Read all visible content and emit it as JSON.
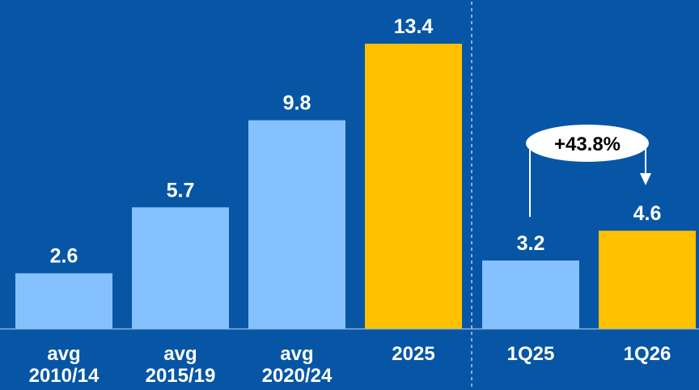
{
  "colors": {
    "background": "#0656A5",
    "bar_primary": "#FFC000",
    "bar_secondary": "#85C1FF",
    "text": "#FFFFFF",
    "annotation_fill": "#FFFFFF",
    "annotation_text": "#000000"
  },
  "chart_data": {
    "type": "bar",
    "title": "",
    "xlabel": "",
    "ylabel": "",
    "ylim": [
      0,
      13.4
    ],
    "grid": false,
    "legend": "none",
    "groups": [
      {
        "bars": [
          {
            "category": [
              "avg",
              "2010/14"
            ],
            "value": 2.6,
            "label": "2.6",
            "highlight": false
          },
          {
            "category": [
              "avg",
              "2015/19"
            ],
            "value": 5.7,
            "label": "5.7",
            "highlight": false
          },
          {
            "category": [
              "avg",
              "2020/24"
            ],
            "value": 9.8,
            "label": "9.8",
            "highlight": false
          },
          {
            "category": [
              "2025"
            ],
            "value": 13.4,
            "label": "13.4",
            "highlight": true
          }
        ]
      },
      {
        "bars": [
          {
            "category": [
              "1Q25"
            ],
            "value": 3.2,
            "label": "3.2",
            "highlight": false
          },
          {
            "category": [
              "1Q26"
            ],
            "value": 4.6,
            "label": "4.6",
            "highlight": true
          }
        ]
      }
    ],
    "annotations": [
      {
        "text": "+43.8%",
        "from": "1Q25",
        "to": "1Q26"
      }
    ]
  }
}
